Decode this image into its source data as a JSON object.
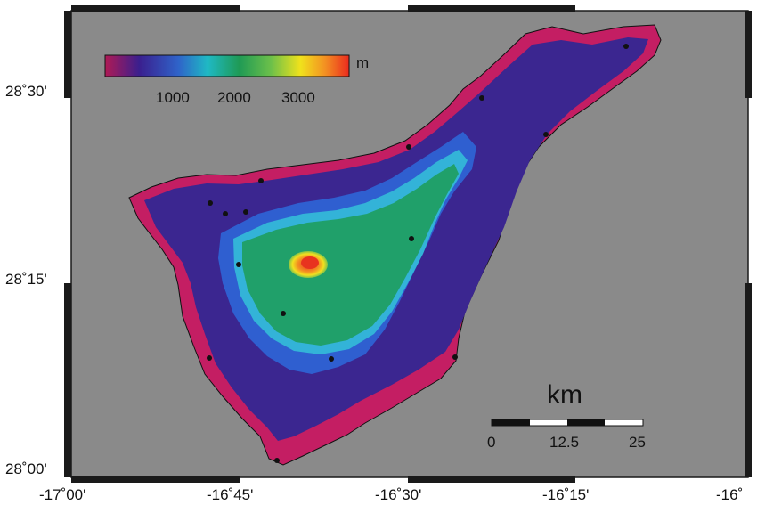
{
  "colorbar": {
    "unit": "m",
    "ticks": [
      "1000",
      "2000",
      "3000"
    ],
    "colors": [
      "#b01a55",
      "#3a1f8e",
      "#2f63c9",
      "#1fb9c4",
      "#1f9a55",
      "#6cc04a",
      "#f0e21c",
      "#f39222",
      "#ea2a1e"
    ]
  },
  "axes": {
    "y_labels": [
      "28˚30'",
      "28˚15'",
      "28˚00'"
    ],
    "x_labels": [
      "-17˚00'",
      "-16˚45'",
      "-16˚30'",
      "-16˚15'",
      "-16˚"
    ]
  },
  "scalebar": {
    "title": "km",
    "ticks": [
      "0",
      "12.5",
      "25"
    ]
  },
  "colors": {
    "sea": "#8a8a8a",
    "frame": "#1a1a1a",
    "coast_low": "#c41e63",
    "mid_low": "#3b2690",
    "mid": "#2f5fd0",
    "cyan": "#33b3d8",
    "green": "#20a06a",
    "peak_yellow": "#f2e01f",
    "peak_red": "#e8331f"
  }
}
